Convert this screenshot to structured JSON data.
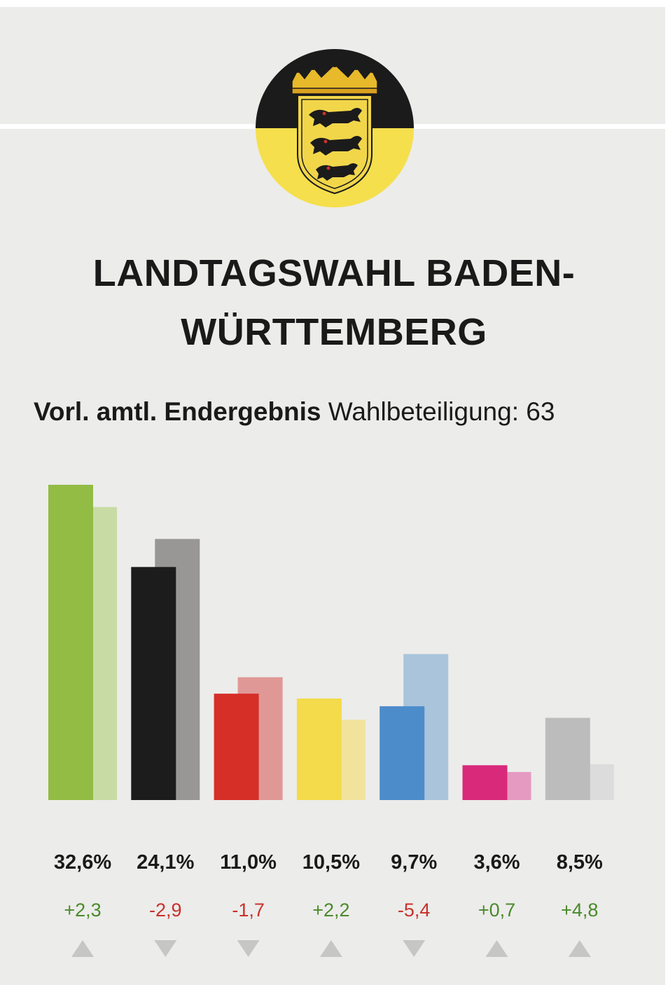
{
  "header": {
    "title_line1": "LANDTAGSWAHL BADEN-",
    "title_line2": "WÜRTTEMBERG",
    "status": "Vorl. amtl. Endergebnis",
    "turnout_text": "Wahlbeteiligung: 63"
  },
  "crest": {
    "icon": "baden-wuerttemberg-coat-of-arms-icon",
    "colors": {
      "top": "#1b1b1b",
      "bottom": "#f5df4d"
    }
  },
  "chart_data": {
    "type": "bar",
    "categories": [
      "",
      "",
      "",
      "",
      "",
      "",
      ""
    ],
    "series": [
      {
        "values": [
          32.6,
          24.1,
          11.0,
          10.5,
          9.7,
          3.6,
          8.5
        ]
      },
      {
        "values": [
          30.3,
          27.0,
          12.7,
          8.3,
          15.1,
          2.9,
          3.7
        ]
      }
    ],
    "value_labels": [
      "32,6%",
      "24,1%",
      "11,0%",
      "10,5%",
      "9,7%",
      "3,6%",
      "8,5%"
    ],
    "diff_labels": [
      "+2,3",
      "-2,9",
      "-1,7",
      "+2,2",
      "-5,4",
      "+0,7",
      "+4,8"
    ],
    "trend": [
      "up",
      "down",
      "down",
      "up",
      "down",
      "up",
      "up"
    ],
    "colors": {
      "current": [
        "#92bc44",
        "#1c1c1c",
        "#d52f28",
        "#f4db4b",
        "#4d8ccb",
        "#d9297b",
        "#bcbcbc"
      ],
      "previous": [
        "#c8dba4",
        "#989796",
        "#e09896",
        "#f1e39c",
        "#aac4dc",
        "#e59ac1",
        "#dcdcdc"
      ],
      "diff_positive": "#4a8a2b",
      "diff_negative": "#c9302b",
      "triangle": "#c6c6c4"
    },
    "ylim": [
      0,
      33
    ]
  }
}
